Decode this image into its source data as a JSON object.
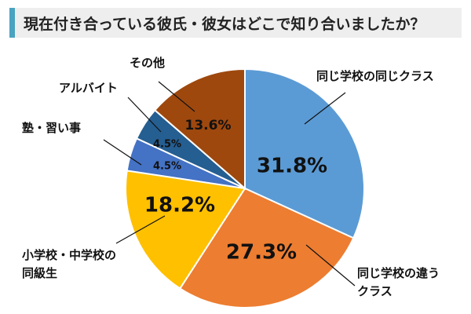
{
  "title": "現在付き合っている彼氏・彼女はどこで知り合いましたか？",
  "chart_data": {
    "type": "pie",
    "slices": [
      {
        "label": "同じ学校の同じクラス",
        "label_lines": [
          "同じ学校の同じクラス"
        ],
        "value": 31.8,
        "value_text": "31.8%",
        "color": "#5b9bd5"
      },
      {
        "label": "同じ学校の違うクラス",
        "label_lines": [
          "同じ学校の違う",
          "クラス"
        ],
        "value": 27.3,
        "value_text": "27.3%",
        "color": "#ed7d31"
      },
      {
        "label": "小学校・中学校の同級生",
        "label_lines": [
          "小学校・中学校の",
          "同級生"
        ],
        "value": 18.2,
        "value_text": "18.2%",
        "color": "#ffc000"
      },
      {
        "label": "塾・習い事",
        "label_lines": [
          "塾・習い事"
        ],
        "value": 4.5,
        "value_text": "4.5%",
        "color": "#4472c4"
      },
      {
        "label": "アルバイト",
        "label_lines": [
          "アルバイト"
        ],
        "value": 4.5,
        "value_text": "4.5%",
        "color": "#255e91"
      },
      {
        "label": "その他",
        "label_lines": [
          "その他"
        ],
        "value": 13.6,
        "value_text": "13.6%",
        "color": "#9e480e"
      }
    ]
  }
}
